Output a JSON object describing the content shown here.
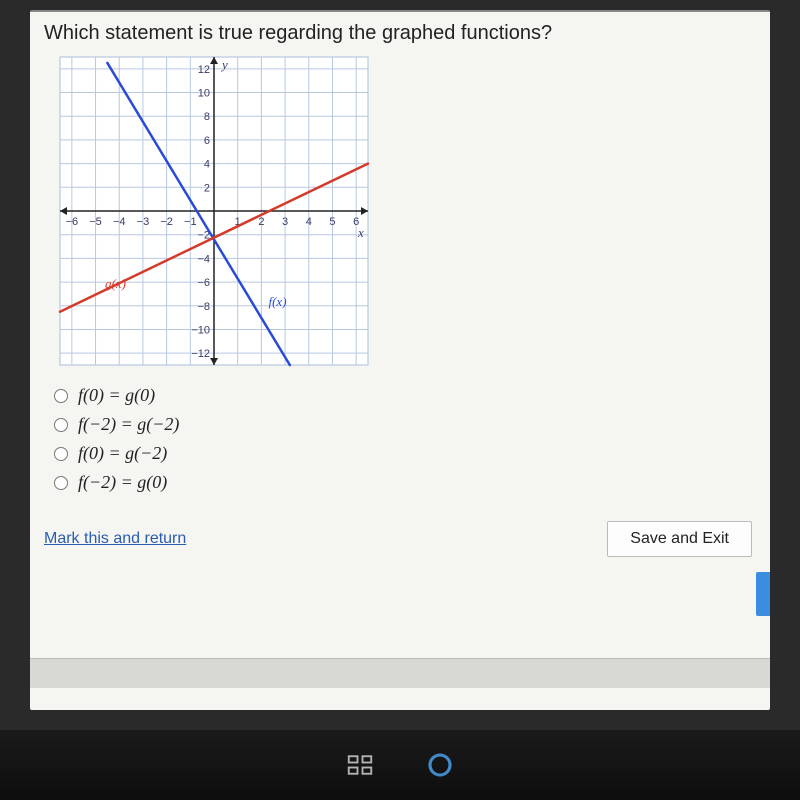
{
  "question": "Which statement is true regarding the graphed functions?",
  "chart": {
    "type": "line",
    "xlim": [
      -6.5,
      6.5
    ],
    "ylim": [
      -13,
      13
    ],
    "x_ticks": [
      -6,
      -5,
      -4,
      -3,
      -2,
      -1,
      1,
      2,
      3,
      4,
      5,
      6
    ],
    "y_ticks": [
      -12,
      -10,
      -8,
      -6,
      -4,
      -2,
      2,
      4,
      6,
      8,
      10,
      12
    ],
    "x_axis_label": "x",
    "y_axis_label": "y",
    "grid_color": "#b8c8e0",
    "axis_color": "#222222",
    "background_color": "#ffffff",
    "tick_label_color": "#3a3a6a",
    "tick_fontsize": 11,
    "series": [
      {
        "name": "f(x)",
        "label": "f(x)",
        "label_pos": {
          "x": 2.3,
          "y": -8
        },
        "color": "#2a4bd7",
        "width": 2.5,
        "points": [
          [
            -4.5,
            12.5
          ],
          [
            3.2,
            -13
          ]
        ]
      },
      {
        "name": "g(x)",
        "label": "g(x)",
        "label_pos": {
          "x": -4.6,
          "y": -6.5
        },
        "color": "#d43a2a",
        "width": 2.5,
        "points": [
          [
            -6.5,
            -8.5
          ],
          [
            6.5,
            4.0
          ]
        ]
      }
    ]
  },
  "options": [
    {
      "text": "f(0) = g(0)"
    },
    {
      "text": "f(−2) = g(−2)"
    },
    {
      "text": "f(0) = g(−2)"
    },
    {
      "text": "f(−2) = g(0)"
    }
  ],
  "mark_link": "Mark this and return",
  "save_button": "Save and Exit"
}
